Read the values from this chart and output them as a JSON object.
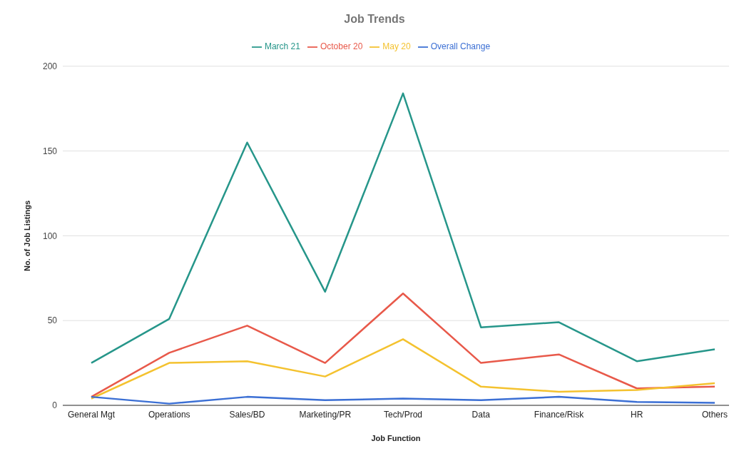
{
  "chart_data": {
    "type": "line",
    "title": "Job Trends",
    "xlabel": "Job Function",
    "ylabel": "No. of Job Listings",
    "categories": [
      "General Mgt",
      "Operations",
      "Sales/BD",
      "Marketing/PR",
      "Tech/Prod",
      "Data",
      "Finance/Risk",
      "HR",
      "Others"
    ],
    "series": [
      {
        "name": "March 21",
        "color": "#26968a",
        "values": [
          25,
          51,
          155,
          67,
          184,
          46,
          49,
          26,
          33
        ]
      },
      {
        "name": "October 20",
        "color": "#e8594a",
        "values": [
          5,
          31,
          47,
          25,
          66,
          25,
          30,
          10,
          11
        ]
      },
      {
        "name": "May 20",
        "color": "#f4c22f",
        "values": [
          4,
          25,
          26,
          17,
          39,
          11,
          8,
          9,
          13
        ]
      },
      {
        "name": "Overall Change",
        "color": "#3b6fd4",
        "values": [
          5,
          1,
          5,
          3,
          4,
          3,
          5,
          2,
          1.5
        ]
      }
    ],
    "ylim": [
      0,
      200
    ],
    "yticks": [
      0,
      50,
      100,
      150,
      200
    ],
    "grid": "y",
    "legend": "top",
    "marker": "none",
    "line_style": "solid"
  }
}
